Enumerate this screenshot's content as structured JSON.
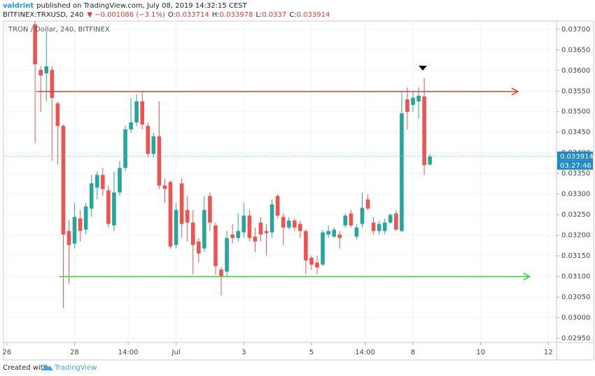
{
  "header": {
    "author": "valdrint",
    "published": "published on TradingView.com, July 08, 2019 14:32:15 CEST",
    "symbol": "BITFINEX:TRXUSD, 240",
    "change_arrow": "▼",
    "change": "−0.001086 (−3.1%)",
    "ohlc_labels": [
      "O:",
      "H:",
      "L:",
      "C:"
    ]
  },
  "chart_data": {
    "type": "candlestick",
    "legend": "TRON / Dollar, 240, BITFINEX",
    "x": [
      26.833,
      27.0,
      27.167,
      27.333,
      27.5,
      27.667,
      27.833,
      28.0,
      28.167,
      28.333,
      28.5,
      28.667,
      28.833,
      29.0,
      29.167,
      29.333,
      29.5,
      29.667,
      29.833,
      30.0,
      30.167,
      30.333,
      30.5,
      30.667,
      30.833,
      31.0,
      31.167,
      31.333,
      31.5,
      31.667,
      31.833,
      32.0,
      32.167,
      32.333,
      32.5,
      32.667,
      32.833,
      33.0,
      33.167,
      33.333,
      33.5,
      33.667,
      33.833,
      34.0,
      34.167,
      34.333,
      34.5,
      34.667,
      34.833,
      35.0,
      35.167,
      35.333,
      35.5,
      35.667,
      35.833,
      36.0,
      36.167,
      36.333,
      36.5,
      36.667,
      36.833,
      37.0,
      37.167,
      37.333,
      37.5,
      37.667,
      37.833,
      38.0,
      38.167,
      38.333,
      38.5
    ],
    "open": [
      0.037119,
      0.036014,
      0.035929,
      0.036014,
      0.035198,
      0.034654,
      0.032104,
      0.031798,
      0.03241,
      0.032138,
      0.032648,
      0.033158,
      0.033464,
      0.03309,
      0.03224,
      0.033039,
      0.033634,
      0.034569,
      0.034739,
      0.035249,
      0.034654,
      0.033974,
      0.034399,
      0.033209,
      0.033294,
      0.031764,
      0.03326,
      0.032614,
      0.032308,
      0.031849,
      0.031679,
      0.032954,
      0.03224,
      0.031169,
      0.031118,
      0.032019,
      0.031934,
      0.03207,
      0.032478,
      0.031968,
      0.032308,
      0.032104,
      0.03207,
      0.032954,
      0.032444,
      0.032189,
      0.032359,
      0.032274,
      0.032104,
      0.031458,
      0.031339,
      0.031288,
      0.032019,
      0.031968,
      0.032019,
      0.03224,
      0.032529,
      0.031968,
      0.032274,
      0.032869,
      0.032308,
      0.032104,
      0.032104,
      0.032308,
      0.032529,
      0.032104,
      0.0353,
      0.035164,
      0.035249,
      0.035368,
      0.033714
    ],
    "high": [
      0.037204,
      0.036099,
      0.036949,
      0.036099,
      0.035249,
      0.034688,
      0.032359,
      0.032784,
      0.032614,
      0.032784,
      0.033464,
      0.033549,
      0.033634,
      0.033209,
      0.033549,
      0.033804,
      0.034654,
      0.035334,
      0.035419,
      0.035504,
      0.034739,
      0.034484,
      0.035249,
      0.033379,
      0.033328,
      0.032784,
      0.033379,
      0.032954,
      0.032614,
      0.031934,
      0.032954,
      0.033039,
      0.032308,
      0.03122,
      0.032104,
      0.032274,
      0.032529,
      0.032784,
      0.032614,
      0.032189,
      0.032444,
      0.032274,
      0.032869,
      0.032988,
      0.032529,
      0.032444,
      0.03241,
      0.032359,
      0.032138,
      0.031509,
      0.031509,
      0.032138,
      0.03224,
      0.032189,
      0.032104,
      0.032529,
      0.032614,
      0.032274,
      0.033039,
      0.032988,
      0.032444,
      0.032359,
      0.03241,
      0.032529,
      0.032614,
      0.035504,
      0.035589,
      0.035504,
      0.035589,
      0.03581,
      0.033978
    ],
    "low": [
      0.034229,
      0.034994,
      0.035249,
      0.033804,
      0.033719,
      0.030234,
      0.030829,
      0.031679,
      0.031849,
      0.032019,
      0.032444,
      0.032869,
      0.032954,
      0.032189,
      0.032104,
      0.032954,
      0.033549,
      0.034484,
      0.034654,
      0.034569,
      0.033889,
      0.033889,
      0.033124,
      0.032784,
      0.031679,
      0.031679,
      0.031934,
      0.031849,
      0.03105,
      0.031339,
      0.031594,
      0.032104,
      0.03105,
      0.03054,
      0.030999,
      0.031798,
      0.031849,
      0.031934,
      0.031849,
      0.031594,
      0.031849,
      0.031509,
      0.031934,
      0.03241,
      0.031764,
      0.032138,
      0.032104,
      0.031934,
      0.03105,
      0.031169,
      0.03105,
      0.031254,
      0.031934,
      0.031934,
      0.031679,
      0.032189,
      0.032189,
      0.0319,
      0.032189,
      0.032614,
      0.032019,
      0.032019,
      0.032019,
      0.032274,
      0.032104,
      0.03207,
      0.034569,
      0.034994,
      0.034824,
      0.033464,
      0.0337
    ],
    "close": [
      0.03615,
      0.035878,
      0.036099,
      0.035334,
      0.034654,
      0.032019,
      0.031764,
      0.032444,
      0.032104,
      0.032699,
      0.03326,
      0.033464,
      0.033124,
      0.032274,
      0.033039,
      0.033634,
      0.034569,
      0.034739,
      0.035249,
      0.034688,
      0.033974,
      0.034399,
      0.033209,
      0.033124,
      0.03173,
      0.032614,
      0.032274,
      0.032308,
      0.031764,
      0.03156,
      0.032614,
      0.032308,
      0.031254,
      0.030999,
      0.031934,
      0.031934,
      0.032104,
      0.032478,
      0.031934,
      0.031849,
      0.032019,
      0.032053,
      0.03275,
      0.032478,
      0.032189,
      0.032359,
      0.032189,
      0.032104,
      0.03139,
      0.031288,
      0.03122,
      0.03207,
      0.032104,
      0.032138,
      0.031934,
      0.032478,
      0.03224,
      0.032189,
      0.032665,
      0.032648,
      0.032104,
      0.032274,
      0.032308,
      0.032495,
      0.032138,
      0.03496,
      0.034994,
      0.035334,
      0.035385,
      0.033702,
      0.033914
    ],
    "up_color": "#26a69a",
    "down_color": "#ef5350",
    "xlim": [
      25.9,
      42.24
    ],
    "xticks": [
      26,
      28,
      {
        "value": 29.583,
        "label": "14:00"
      },
      {
        "value": 31,
        "label": "Jul"
      },
      {
        "value": 33,
        "label": "3"
      },
      {
        "value": 35,
        "label": "5"
      },
      {
        "value": 36.583,
        "label": "14:00"
      },
      {
        "value": 38,
        "label": "8"
      },
      {
        "value": 40,
        "label": "10"
      },
      {
        "value": 42,
        "label": "12"
      }
    ],
    "ylim": [
      0.0294,
      0.0372
    ],
    "yticks": [
      {
        "value": 0.0295,
        "label": "0.02950"
      },
      {
        "value": 0.03,
        "label": "0.03000"
      },
      {
        "value": 0.0305,
        "label": "0.03050"
      },
      {
        "value": 0.031,
        "label": "0.03100"
      },
      {
        "value": 0.0315,
        "label": "0.03150"
      },
      {
        "value": 0.032,
        "label": "0.03200"
      },
      {
        "value": 0.0325,
        "label": "0.03250"
      },
      {
        "value": 0.033,
        "label": "0.03300"
      },
      {
        "value": 0.0335,
        "label": "0.03350"
      },
      {
        "value": 0.034,
        "label": "0.03400"
      },
      {
        "value": 0.0345,
        "label": "0.03450"
      },
      {
        "value": 0.035,
        "label": "0.03500"
      },
      {
        "value": 0.0355,
        "label": "0.03550"
      },
      {
        "value": 0.036,
        "label": "0.03600"
      },
      {
        "value": 0.0365,
        "label": "0.03650"
      },
      {
        "value": 0.037,
        "label": "0.03700"
      }
    ],
    "grid": true,
    "countdown": "03:27:46",
    "lines": [
      {
        "color": "#e53935",
        "value": 0.035487,
        "x": [
          26.87,
          41.1
        ]
      },
      {
        "color": "#33dd33",
        "value": 0.030999,
        "x": [
          27.55,
          41.45
        ]
      }
    ]
  },
  "footer": {
    "created_with": "Created with",
    "brand": "TradingView"
  }
}
